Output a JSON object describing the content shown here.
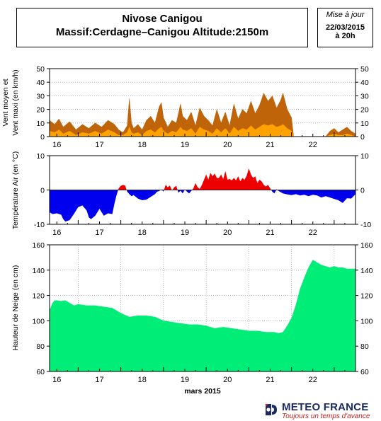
{
  "header": {
    "title_line1": "Nivose Canigou",
    "title_line2": "Massif:Cerdagne–Canigou Altitude:2150m"
  },
  "update": {
    "label": "Mise à jour",
    "date": "22/03/2015",
    "time": "à 20h"
  },
  "logo": {
    "name": "METEO FRANCE",
    "tagline": "Toujours un temps d'avance",
    "color_name": "#1b2a63",
    "color_tagline": "#c8201f"
  },
  "chart_data": [
    {
      "type": "area",
      "ylabel": "Vent moyen et Vent maxi (en km/h)",
      "ylim": [
        0,
        50
      ],
      "yticks": [
        0,
        10,
        20,
        30,
        40,
        50
      ],
      "xlim": [
        15.33,
        22.5
      ],
      "xticks": [
        16,
        17,
        18,
        19,
        20,
        21,
        22
      ],
      "grid": "horizontal dotted",
      "series": [
        {
          "color": "#c0640a",
          "x": [
            15.33,
            15.45,
            15.55,
            15.65,
            15.8,
            15.95,
            16.1,
            16.25,
            16.4,
            16.55,
            16.7,
            16.85,
            16.95,
            17.05,
            17.15,
            17.2,
            17.25,
            17.3,
            17.4,
            17.5,
            17.6,
            17.7,
            17.8,
            17.9,
            17.95,
            18.0,
            18.1,
            18.2,
            18.3,
            18.4,
            18.45,
            18.55,
            18.65,
            18.75,
            18.85,
            18.95,
            19.05,
            19.15,
            19.25,
            19.35,
            19.45,
            19.55,
            19.65,
            19.75,
            19.85,
            19.95,
            20.05,
            20.15,
            20.25,
            20.35,
            20.45,
            20.55,
            20.65,
            20.75,
            20.8,
            20.9,
            21.0,
            21.05,
            21.2,
            21.5,
            21.8,
            21.9,
            22.0,
            22.1,
            22.2,
            22.3,
            22.4,
            22.5
          ],
          "y": [
            12,
            9,
            13,
            7,
            11,
            5,
            9,
            6,
            10,
            7,
            12,
            9,
            5,
            3,
            8,
            28,
            10,
            6,
            9,
            5,
            12,
            15,
            10,
            22,
            25,
            14,
            7,
            12,
            10,
            24,
            15,
            12,
            18,
            8,
            21,
            15,
            12,
            8,
            20,
            10,
            18,
            8,
            24,
            13,
            20,
            17,
            26,
            17,
            23,
            32,
            26,
            30,
            21,
            27,
            32,
            20,
            14,
            0,
            0,
            0,
            0,
            4,
            6,
            3,
            5,
            7,
            4,
            2
          ]
        },
        {
          "color": "#ffa200",
          "x": [
            15.33,
            15.45,
            15.55,
            15.65,
            15.8,
            15.95,
            16.1,
            16.25,
            16.4,
            16.55,
            16.7,
            16.85,
            16.95,
            17.05,
            17.15,
            17.2,
            17.25,
            17.3,
            17.4,
            17.5,
            17.6,
            17.7,
            17.8,
            17.9,
            17.95,
            18.0,
            18.1,
            18.2,
            18.3,
            18.4,
            18.45,
            18.55,
            18.65,
            18.75,
            18.85,
            18.95,
            19.05,
            19.15,
            19.25,
            19.35,
            19.45,
            19.55,
            19.65,
            19.75,
            19.85,
            19.95,
            20.05,
            20.15,
            20.25,
            20.35,
            20.45,
            20.55,
            20.65,
            20.75,
            20.8,
            20.9,
            21.0,
            21.05,
            21.2,
            21.5,
            21.8,
            21.9,
            22.0,
            22.1,
            22.2,
            22.3,
            22.4,
            22.5
          ],
          "y": [
            4,
            3,
            5,
            2,
            4,
            1,
            3,
            2,
            4,
            2,
            5,
            3,
            1,
            1,
            3,
            7,
            3,
            2,
            3,
            1,
            4,
            5,
            3,
            6,
            7,
            4,
            2,
            4,
            3,
            7,
            5,
            4,
            6,
            2,
            7,
            5,
            4,
            2,
            6,
            3,
            6,
            2,
            7,
            4,
            6,
            5,
            8,
            5,
            7,
            9,
            8,
            9,
            7,
            8,
            9,
            6,
            4,
            0,
            0,
            0,
            0,
            1,
            2,
            1,
            1,
            2,
            1,
            0
          ]
        }
      ]
    },
    {
      "type": "area",
      "ylabel": "Température Air (en °C)",
      "ylim": [
        -10,
        10
      ],
      "yticks": [
        -10,
        0,
        10
      ],
      "xlim": [
        15.33,
        22.5
      ],
      "xticks": [
        16,
        17,
        18,
        19,
        20,
        21,
        22
      ],
      "colors": {
        "positive": "#ee0000",
        "negative": "#0000ee"
      },
      "x": [
        15.33,
        15.4,
        15.5,
        15.6,
        15.65,
        15.7,
        15.8,
        15.9,
        16.0,
        16.1,
        16.2,
        16.25,
        16.3,
        16.4,
        16.5,
        16.55,
        16.6,
        16.7,
        16.8,
        16.85,
        16.9,
        16.95,
        17.0,
        17.05,
        17.1,
        17.15,
        17.2,
        17.25,
        17.3,
        17.4,
        17.5,
        17.6,
        17.7,
        17.8,
        17.85,
        17.9,
        17.95,
        18.0,
        18.05,
        18.1,
        18.15,
        18.2,
        18.25,
        18.3,
        18.35,
        18.4,
        18.45,
        18.5,
        18.55,
        18.6,
        18.65,
        18.7,
        18.75,
        18.8,
        18.85,
        18.9,
        18.95,
        19.0,
        19.05,
        19.1,
        19.15,
        19.2,
        19.25,
        19.3,
        19.35,
        19.4,
        19.45,
        19.5,
        19.55,
        19.6,
        19.65,
        19.7,
        19.75,
        19.8,
        19.85,
        19.9,
        19.95,
        20.0,
        20.05,
        20.1,
        20.15,
        20.2,
        20.25,
        20.3,
        20.35,
        20.4,
        20.45,
        20.5,
        20.55,
        20.6,
        20.65,
        20.7,
        20.8,
        20.9,
        21.0,
        21.1,
        21.2,
        21.3,
        21.4,
        21.5,
        21.6,
        21.7,
        21.8,
        21.9,
        22.0,
        22.1,
        22.2,
        22.3,
        22.4,
        22.5
      ],
      "y": [
        -6.5,
        -7,
        -6.8,
        -7.2,
        -8.5,
        -9.2,
        -8.8,
        -7,
        -5,
        -4.5,
        -6,
        -8,
        -8.5,
        -7.5,
        -5.5,
        -6.5,
        -7.5,
        -6.8,
        -7,
        -4,
        -1.5,
        0.5,
        1.2,
        1.5,
        1.3,
        -0.5,
        -1.2,
        -1.8,
        -1.5,
        -2.5,
        -3,
        -2.8,
        -2,
        -1.2,
        -0.5,
        -0.3,
        0.2,
        -0.5,
        1.5,
        0.8,
        1.3,
        -0.2,
        0.8,
        1.2,
        -0.8,
        -0.2,
        -1,
        0.2,
        -0.5,
        -1,
        -0.3,
        0.5,
        2,
        0.8,
        0.3,
        1.5,
        3,
        4.5,
        3,
        5,
        4,
        4.8,
        3.5,
        3.5,
        4.5,
        3.2,
        5.5,
        3,
        3.2,
        2.8,
        3.5,
        2.8,
        4,
        2.5,
        3.5,
        3,
        4.2,
        6.3,
        4.5,
        3.5,
        4,
        2,
        3,
        2.5,
        1.5,
        1,
        1.5,
        0.5,
        -0.5,
        -1,
        0.2,
        -0.3,
        -1,
        -1.3,
        -1.5,
        -1.2,
        -1.6,
        -1.4,
        -1.8,
        -1.4,
        -1.6,
        -2.2,
        -1.8,
        -2.2,
        -2.6,
        -3,
        -3.8,
        -2.4,
        -2.5,
        -1.2
      ]
    },
    {
      "type": "area",
      "ylabel": "Hauteur de Neige (en cm)",
      "xlabel": "mars 2015",
      "ylim": [
        60,
        160
      ],
      "yticks": [
        60,
        80,
        100,
        120,
        140,
        160
      ],
      "xlim": [
        15.33,
        22.5
      ],
      "xticks": [
        16,
        17,
        18,
        19,
        20,
        21,
        22
      ],
      "grid": "dotted",
      "color": "#00ee77",
      "x": [
        15.33,
        15.4,
        15.45,
        15.5,
        15.6,
        15.7,
        15.8,
        15.9,
        16.0,
        16.2,
        16.4,
        16.6,
        16.8,
        17.0,
        17.2,
        17.4,
        17.6,
        17.8,
        18.0,
        18.2,
        18.4,
        18.6,
        18.8,
        19.0,
        19.2,
        19.4,
        19.6,
        19.8,
        20.0,
        20.2,
        20.4,
        20.6,
        20.7,
        20.8,
        20.9,
        21.0,
        21.1,
        21.2,
        21.3,
        21.4,
        21.5,
        21.6,
        21.7,
        21.8,
        21.9,
        22.0,
        22.1,
        22.2,
        22.3,
        22.4,
        22.5
      ],
      "y": [
        108,
        114,
        116,
        116,
        115.5,
        116,
        114,
        112,
        113,
        112,
        112,
        111,
        110,
        106,
        103,
        104,
        104,
        103,
        100,
        99,
        98,
        97,
        97,
        96,
        94,
        95,
        94,
        93,
        92,
        92,
        91,
        91,
        90,
        91,
        96,
        102,
        112,
        125,
        134,
        142,
        148,
        146,
        144,
        143,
        142,
        143,
        142,
        142,
        141,
        141,
        141
      ]
    }
  ]
}
